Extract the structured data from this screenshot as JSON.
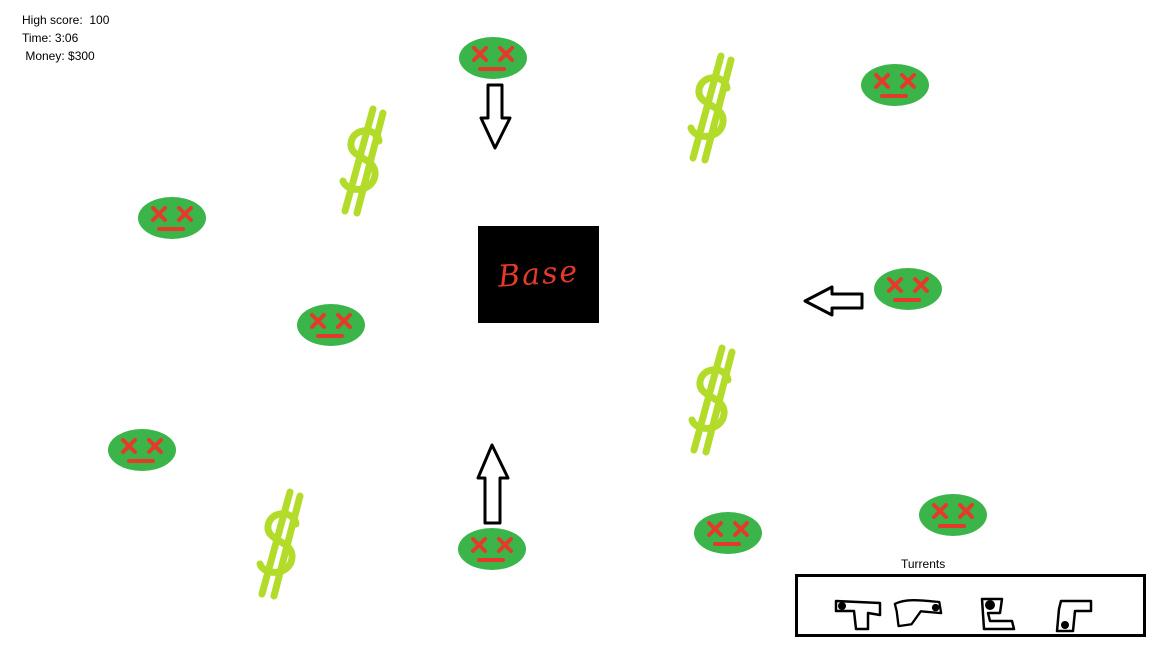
{
  "hud": {
    "high_score": "High score:  100",
    "time": "Time: 3:06",
    "money": " Money: $300"
  },
  "base": {
    "label": "Base"
  },
  "turret_shop": {
    "title": "Turrents",
    "items": [
      "cannon-turret",
      "twin-gun-turret",
      "boot-turret",
      "l-turret"
    ]
  },
  "colors": {
    "enemy_body": "#3bb54a",
    "enemy_face": "#e53a2a",
    "money": "#b3dc2a",
    "base": "#000000"
  },
  "entities": {
    "enemies": 10,
    "money_pickups": 4,
    "direction_arrows": [
      "down",
      "left",
      "up"
    ]
  }
}
